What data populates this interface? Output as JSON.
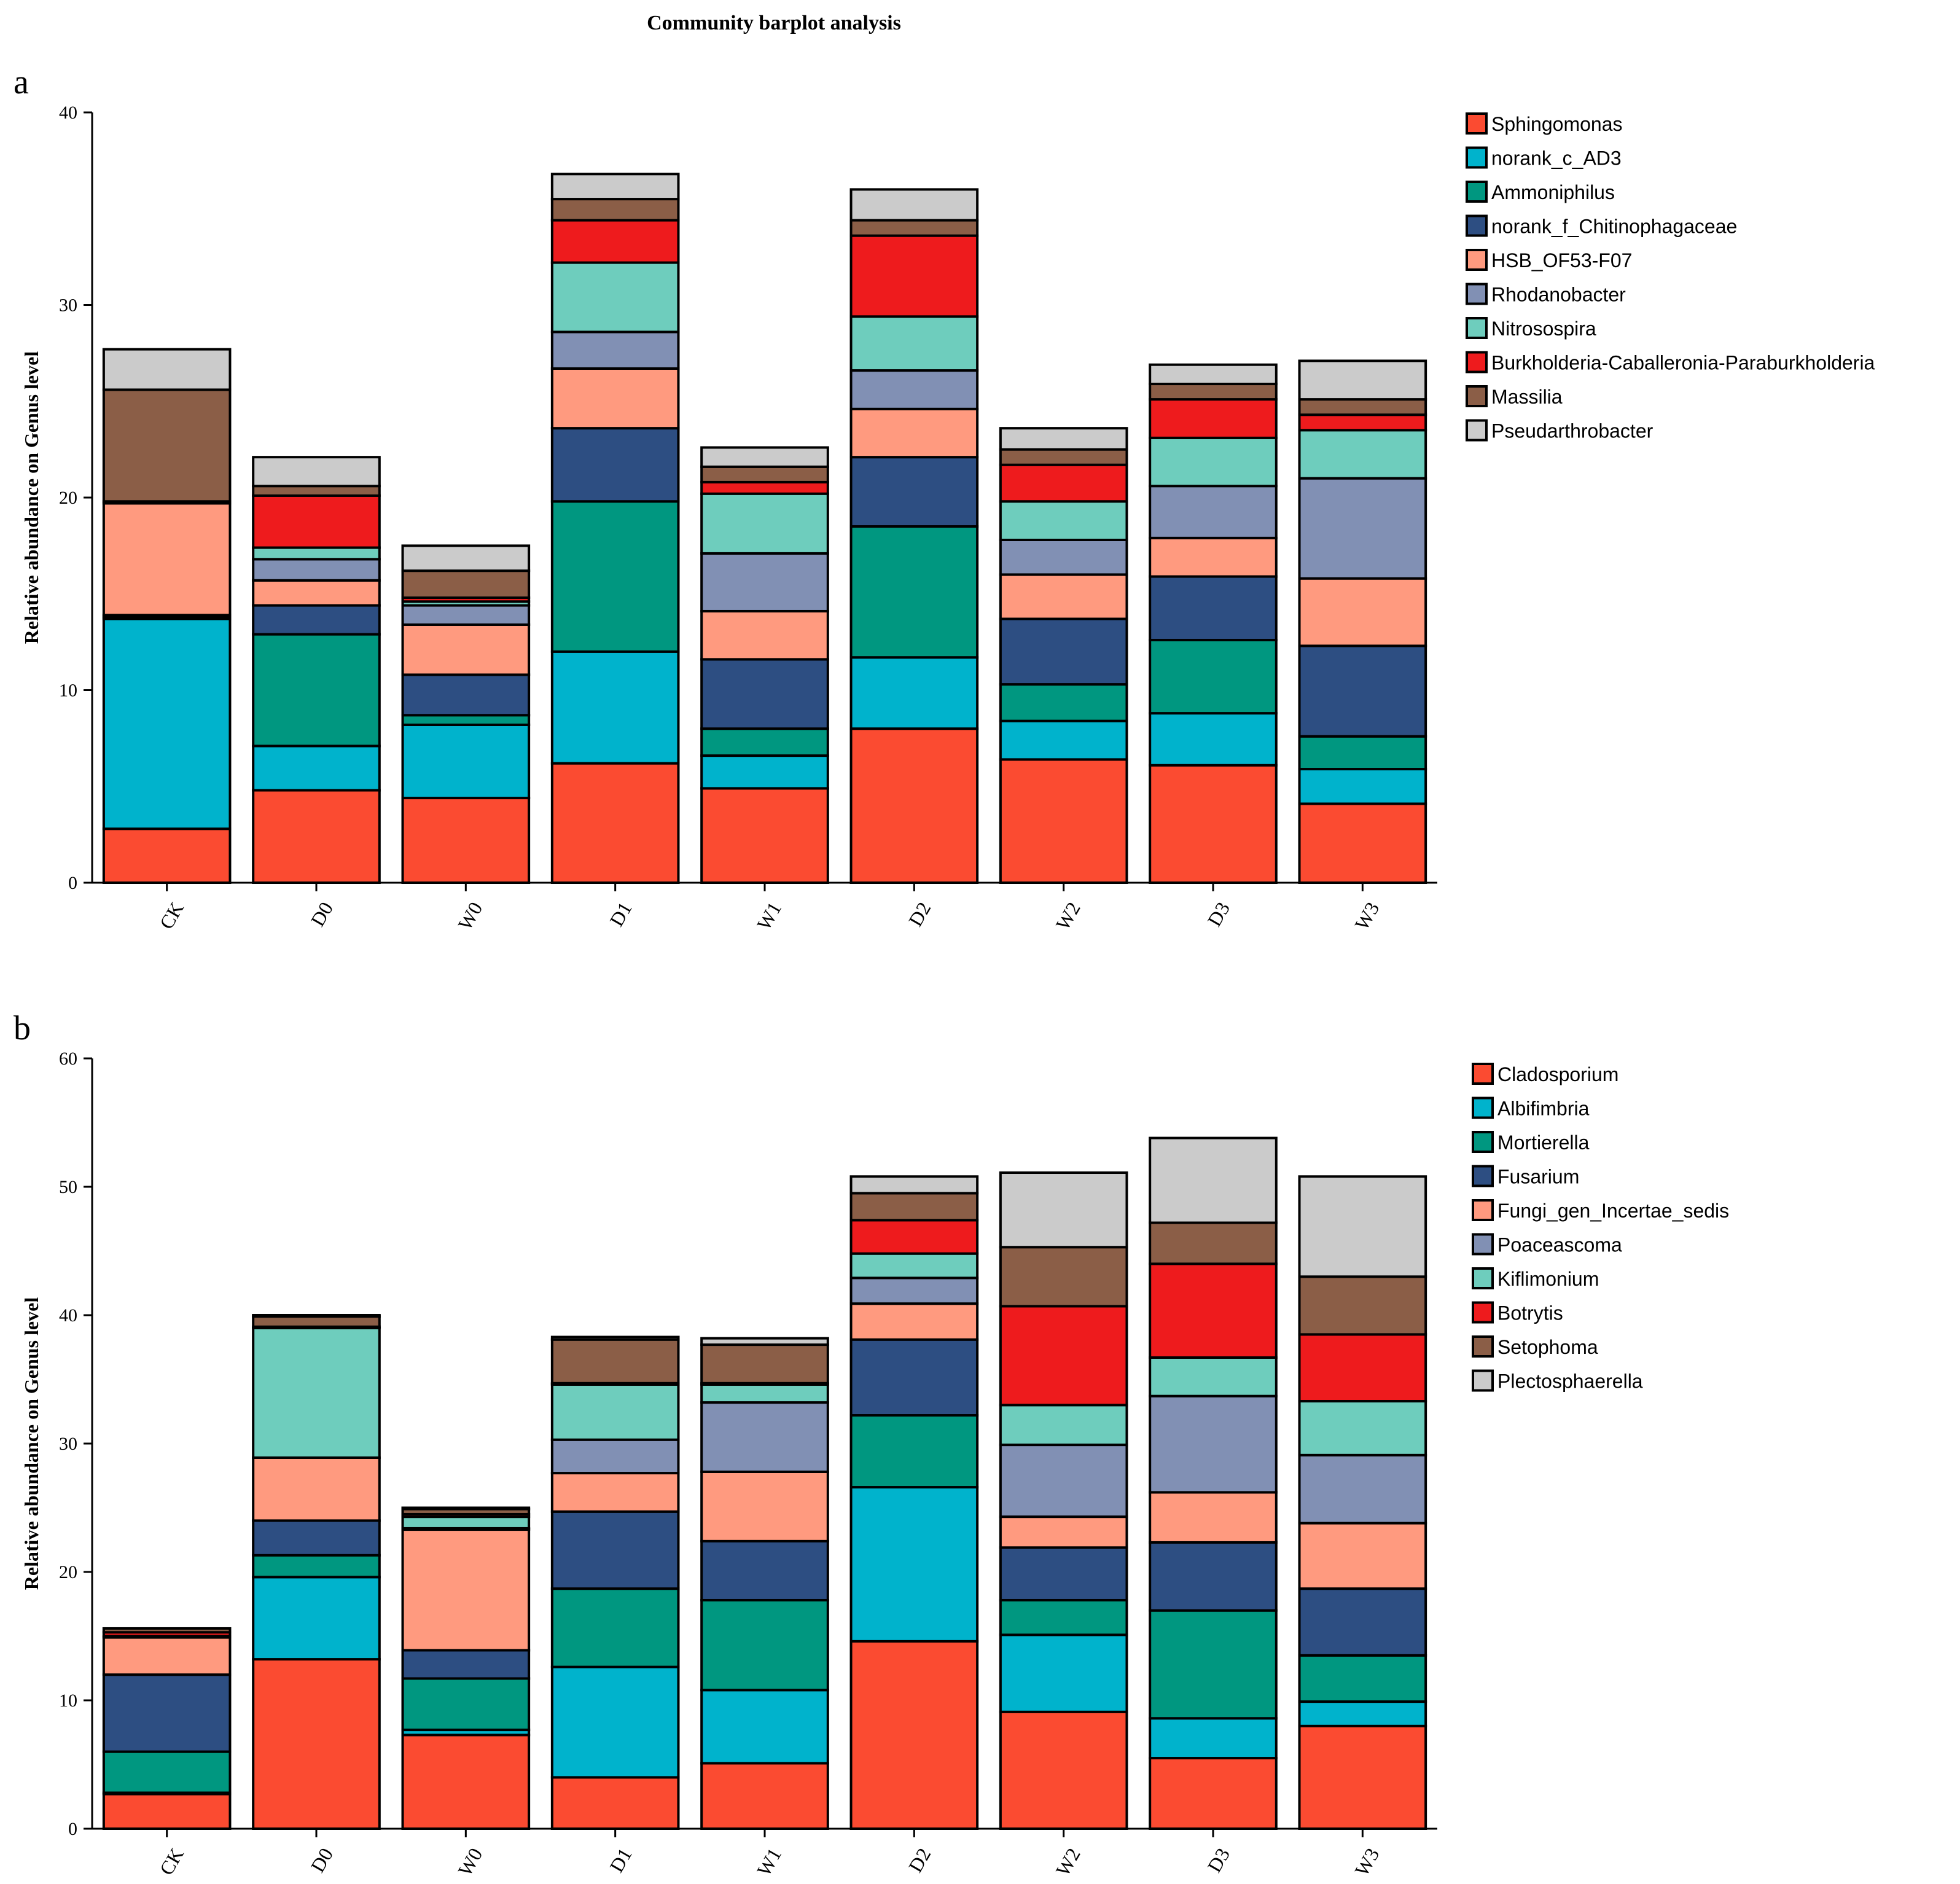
{
  "figure": {
    "title": "Community barplot analysis"
  },
  "chart_data": [
    {
      "type": "bar",
      "stacked": true,
      "panel_label": "a",
      "ylabel": "Relative abundance on Genus level",
      "xlabel": "",
      "ylim": [
        0,
        40
      ],
      "yticks": [
        0,
        10,
        20,
        30,
        40
      ],
      "legend_position": "right",
      "categories": [
        "CK",
        "D0",
        "W0",
        "D1",
        "W1",
        "D2",
        "W2",
        "D3",
        "W3"
      ],
      "series": [
        {
          "name": "Sphingomonas",
          "color": "#fb4b31",
          "values": [
            2.8,
            4.8,
            4.4,
            6.2,
            4.9,
            8.0,
            6.4,
            6.1,
            4.1
          ]
        },
        {
          "name": "norank_c_AD3",
          "color": "#00b3cc",
          "values": [
            10.9,
            2.3,
            3.8,
            5.8,
            1.7,
            3.7,
            2.0,
            2.7,
            1.8
          ]
        },
        {
          "name": "Ammoniphilus",
          "color": "#009780",
          "values": [
            0.1,
            5.8,
            0.5,
            7.8,
            1.4,
            6.8,
            1.9,
            3.8,
            1.7
          ]
        },
        {
          "name": "norank_f_Chitinophagaceae",
          "color": "#2d4e82",
          "values": [
            0.1,
            1.5,
            2.1,
            3.8,
            3.6,
            3.6,
            3.4,
            3.3,
            4.7
          ]
        },
        {
          "name": "HSB_OF53-F07",
          "color": "#ff9a7f",
          "values": [
            5.8,
            1.3,
            2.6,
            3.1,
            2.5,
            2.5,
            2.3,
            2.0,
            3.5
          ]
        },
        {
          "name": "Rhodanobacter",
          "color": "#8190b4",
          "values": [
            0.0,
            1.1,
            1.0,
            1.9,
            3.0,
            2.0,
            1.8,
            2.7,
            5.2
          ]
        },
        {
          "name": "Nitrosospira",
          "color": "#6ecdbd",
          "values": [
            0.0,
            0.6,
            0.2,
            3.6,
            3.1,
            2.8,
            2.0,
            2.5,
            2.5
          ]
        },
        {
          "name": "Burkholderia-Caballeronia-Paraburkholderia",
          "color": "#ee1b1d",
          "values": [
            0.1,
            2.7,
            0.2,
            2.2,
            0.6,
            4.2,
            1.9,
            2.0,
            0.8
          ]
        },
        {
          "name": "Massilia",
          "color": "#8b5e47",
          "values": [
            5.8,
            0.5,
            1.4,
            1.1,
            0.8,
            0.8,
            0.8,
            0.8,
            0.8
          ]
        },
        {
          "name": "Pseudarthrobacter",
          "color": "#cbcbcb",
          "values": [
            2.1,
            1.5,
            1.3,
            1.3,
            1.0,
            1.6,
            1.1,
            1.0,
            2.0
          ]
        }
      ]
    },
    {
      "type": "bar",
      "stacked": true,
      "panel_label": "b",
      "ylabel": "Relative abundance on Genus level",
      "xlabel": "",
      "ylim": [
        0,
        60
      ],
      "yticks": [
        0,
        10,
        20,
        30,
        40,
        50,
        60
      ],
      "legend_position": "right",
      "categories": [
        "CK",
        "D0",
        "W0",
        "D1",
        "W1",
        "D2",
        "W2",
        "D3",
        "W3"
      ],
      "series": [
        {
          "name": "Cladosporium",
          "color": "#fb4b31",
          "values": [
            2.7,
            13.2,
            7.3,
            4.0,
            5.1,
            14.6,
            9.1,
            5.5,
            8.0
          ]
        },
        {
          "name": "Albifimbria",
          "color": "#00b3cc",
          "values": [
            0.1,
            6.4,
            0.4,
            8.6,
            5.7,
            12.0,
            6.0,
            3.1,
            1.9
          ]
        },
        {
          "name": "Mortierella",
          "color": "#009780",
          "values": [
            3.2,
            1.7,
            4.0,
            6.1,
            7.0,
            5.6,
            2.7,
            8.4,
            3.6
          ]
        },
        {
          "name": "Fusarium",
          "color": "#2d4e82",
          "values": [
            6.0,
            2.7,
            2.2,
            6.0,
            4.6,
            5.9,
            4.1,
            5.3,
            5.2
          ]
        },
        {
          "name": "Fungi_gen_Incertae_sedis",
          "color": "#ff9a7f",
          "values": [
            2.9,
            4.9,
            9.4,
            3.0,
            5.4,
            2.8,
            2.4,
            3.9,
            5.1
          ]
        },
        {
          "name": "Poaceascoma",
          "color": "#8190b4",
          "values": [
            0.0,
            0.0,
            0.1,
            2.6,
            5.4,
            2.0,
            5.6,
            7.5,
            5.3
          ]
        },
        {
          "name": "Kiflimonium",
          "color": "#6ecdbd",
          "values": [
            0.1,
            10.1,
            0.9,
            4.3,
            1.4,
            1.9,
            3.1,
            3.0,
            4.2
          ]
        },
        {
          "name": "Botrytis",
          "color": "#ee1b1d",
          "values": [
            0.3,
            0.1,
            0.2,
            0.1,
            0.1,
            2.6,
            7.7,
            7.3,
            5.2
          ]
        },
        {
          "name": "Setophoma",
          "color": "#8b5e47",
          "values": [
            0.3,
            0.8,
            0.4,
            3.4,
            3.0,
            2.1,
            4.6,
            3.2,
            4.5
          ]
        },
        {
          "name": "Plectosphaerella",
          "color": "#cbcbcb",
          "values": [
            0.0,
            0.1,
            0.1,
            0.2,
            0.5,
            1.3,
            5.8,
            6.6,
            7.8
          ]
        }
      ]
    }
  ]
}
